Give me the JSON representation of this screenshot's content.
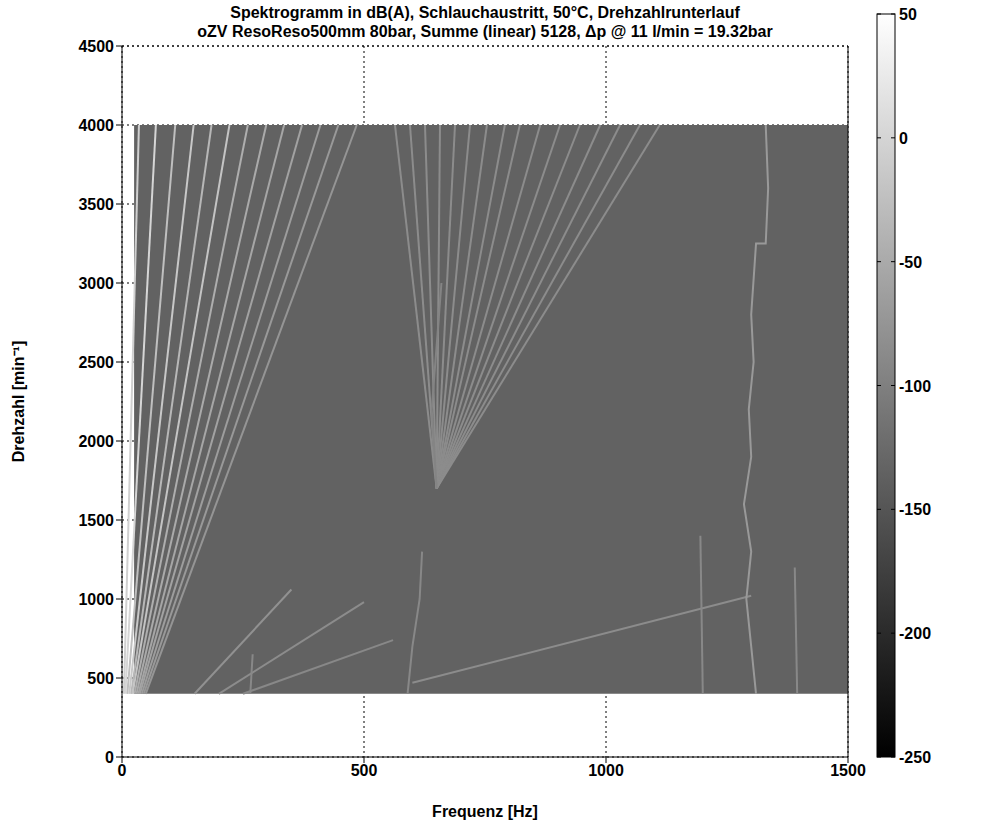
{
  "chart_data": {
    "type": "spectrogram",
    "title": "Spektrogramm in dB(A), Schlauchaustritt, 50°C, Drehzahlrunterlauf",
    "subtitle": "oZV ResoReso500mm 80bar, Summe (linear) 5128, Δp @ 11 l/min = 19.32bar",
    "x_label": "Frequenz [Hz]",
    "y_label": "Drehzahl [min⁻¹]",
    "xlim": [
      0,
      1500
    ],
    "xticks": [
      0,
      500,
      1000,
      1500
    ],
    "ylim": [
      0,
      4500
    ],
    "yticks": [
      0,
      500,
      1000,
      1500,
      2000,
      2500,
      3000,
      3500,
      4000,
      4500
    ],
    "grid": true,
    "background": {
      "x": [
        25,
        1500
      ],
      "y": [
        400,
        4000
      ],
      "level": -135
    },
    "colorbar": {
      "range": [
        -250,
        50
      ],
      "ticks": [
        50,
        0,
        -50,
        -100,
        -150,
        -200,
        -250
      ]
    },
    "series": [
      {
        "level": -5,
        "x": [
          4,
          35
        ],
        "y": [
          400,
          4000
        ]
      },
      {
        "level": 0,
        "x": [
          7,
          70
        ],
        "y": [
          400,
          4000
        ]
      },
      {
        "level": -25,
        "x": [
          11,
          110
        ],
        "y": [
          400,
          4000
        ]
      },
      {
        "level": -15,
        "x": [
          15,
          148
        ],
        "y": [
          400,
          4000
        ]
      },
      {
        "level": -35,
        "x": [
          19,
          185
        ],
        "y": [
          400,
          4000
        ]
      },
      {
        "level": -20,
        "x": [
          22,
          222
        ],
        "y": [
          400,
          4000
        ]
      },
      {
        "level": -45,
        "x": [
          26,
          260
        ],
        "y": [
          400,
          4000
        ]
      },
      {
        "level": -50,
        "x": [
          30,
          298
        ],
        "y": [
          400,
          4000
        ]
      },
      {
        "level": -55,
        "x": [
          34,
          335
        ],
        "y": [
          400,
          4000
        ]
      },
      {
        "level": -60,
        "x": [
          37,
          372
        ],
        "y": [
          400,
          4000
        ]
      },
      {
        "level": -65,
        "x": [
          41,
          410
        ],
        "y": [
          400,
          4000
        ]
      },
      {
        "level": -70,
        "x": [
          45,
          447
        ],
        "y": [
          400,
          4000
        ]
      },
      {
        "level": -75,
        "x": [
          49,
          485
        ],
        "y": [
          400,
          4000
        ]
      },
      {
        "level": -80,
        "x": [
          150,
          350
        ],
        "y": [
          400,
          1060
        ]
      },
      {
        "level": -85,
        "x": [
          200,
          500
        ],
        "y": [
          400,
          980
        ]
      },
      {
        "level": -90,
        "x": [
          250,
          560
        ],
        "y": [
          400,
          740
        ]
      },
      {
        "level": -85,
        "x": [
          600,
          1300
        ],
        "y": [
          470,
          1020
        ]
      },
      {
        "level": -85,
        "x": [
          650,
          564
        ],
        "y": [
          1700,
          4000
        ]
      },
      {
        "level": -85,
        "x": [
          650,
          595
        ],
        "y": [
          1700,
          4000
        ]
      },
      {
        "level": -85,
        "x": [
          650,
          626
        ],
        "y": [
          1700,
          4000
        ]
      },
      {
        "level": -85,
        "x": [
          650,
          657
        ],
        "y": [
          1700,
          4000
        ]
      },
      {
        "level": -85,
        "x": [
          650,
          688
        ],
        "y": [
          1700,
          4000
        ]
      },
      {
        "level": -85,
        "x": [
          650,
          719
        ],
        "y": [
          1700,
          4000
        ]
      },
      {
        "level": -85,
        "x": [
          650,
          754
        ],
        "y": [
          1700,
          4000
        ]
      },
      {
        "level": -85,
        "x": [
          650,
          791
        ],
        "y": [
          1700,
          4000
        ]
      },
      {
        "level": -85,
        "x": [
          650,
          822
        ],
        "y": [
          1700,
          4000
        ]
      },
      {
        "level": -85,
        "x": [
          650,
          864
        ],
        "y": [
          1700,
          4000
        ]
      },
      {
        "level": -85,
        "x": [
          650,
          905
        ],
        "y": [
          1700,
          4000
        ]
      },
      {
        "level": -85,
        "x": [
          650,
          946
        ],
        "y": [
          1700,
          4000
        ]
      },
      {
        "level": -85,
        "x": [
          650,
          988
        ],
        "y": [
          1700,
          4000
        ]
      },
      {
        "level": -85,
        "x": [
          650,
          1029
        ],
        "y": [
          1700,
          4000
        ]
      },
      {
        "level": -85,
        "x": [
          650,
          1070
        ],
        "y": [
          1700,
          4000
        ]
      },
      {
        "level": -85,
        "x": [
          650,
          1111
        ],
        "y": [
          1700,
          4000
        ]
      },
      {
        "level": -70,
        "x": [
          1310,
          1300,
          1290,
          1300,
          1285,
          1300,
          1295,
          1305,
          1300,
          1310,
          1330,
          1335,
          1330
        ],
        "y": [
          400,
          700,
          1000,
          1300,
          1600,
          1900,
          2200,
          2500,
          2800,
          3250,
          3250,
          3600,
          4000
        ]
      },
      {
        "level": -90,
        "x": [
          1200,
          1195
        ],
        "y": [
          400,
          1400
        ]
      },
      {
        "level": -90,
        "x": [
          1395,
          1390
        ],
        "y": [
          400,
          1200
        ]
      },
      {
        "level": -90,
        "x": [
          590,
          600,
          615,
          620
        ],
        "y": [
          400,
          700,
          1000,
          1300
        ]
      },
      {
        "level": -90,
        "x": [
          265,
          270
        ],
        "y": [
          400,
          650
        ]
      },
      {
        "level": -95,
        "x": [
          650,
          640,
          650,
          660
        ],
        "y": [
          1700,
          2200,
          2600,
          3000
        ]
      }
    ]
  }
}
